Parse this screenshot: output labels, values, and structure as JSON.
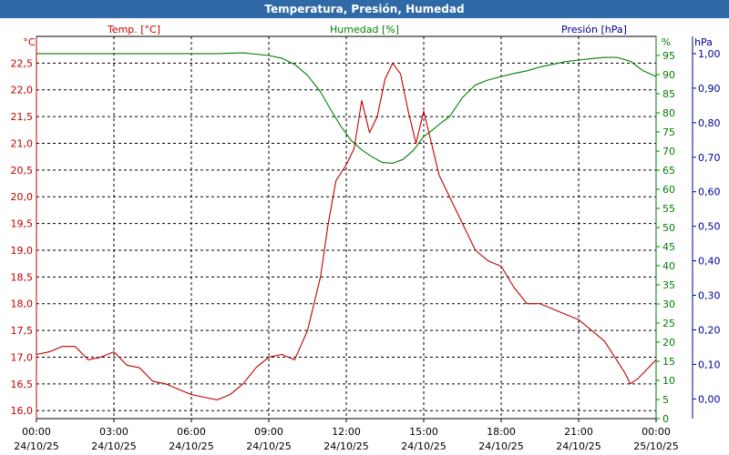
{
  "title": "Temperatura, Presión, Humedad",
  "colors": {
    "temp": "#c00000",
    "hum": "#008000",
    "pres": "#000090",
    "title_bg": "#2f6aa6",
    "grid": "#000000"
  },
  "chart_data": {
    "type": "line",
    "title": "Temperatura, Presión, Humedad",
    "grid": true,
    "x": {
      "ticks": [
        {
          "time": "00:00",
          "date": "24/10/25"
        },
        {
          "time": "03:00",
          "date": "24/10/25"
        },
        {
          "time": "06:00",
          "date": "24/10/25"
        },
        {
          "time": "09:00",
          "date": "24/10/25"
        },
        {
          "time": "12:00",
          "date": "24/10/25"
        },
        {
          "time": "15:00",
          "date": "24/10/25"
        },
        {
          "time": "18:00",
          "date": "24/10/25"
        },
        {
          "time": "21:00",
          "date": "24/10/25"
        },
        {
          "time": "00:00",
          "date": "25/10/25"
        }
      ],
      "range_hours": [
        0,
        24
      ]
    },
    "axes": {
      "temp": {
        "label": "Temp. [°C]",
        "unit": "°C",
        "range": [
          15.85,
          23.0
        ],
        "ticks": [
          "16,0",
          "16,5",
          "17,0",
          "17,5",
          "18,0",
          "18,5",
          "19,0",
          "19,5",
          "20,0",
          "20,5",
          "21,0",
          "21,5",
          "22,0",
          "22,5"
        ],
        "tick_values": [
          16.0,
          16.5,
          17.0,
          17.5,
          18.0,
          18.5,
          19.0,
          19.5,
          20.0,
          20.5,
          21.0,
          21.5,
          22.0,
          22.5
        ]
      },
      "hum": {
        "label": "Humedad [%]",
        "unit": "%",
        "range": [
          0,
          100
        ],
        "ticks": [
          "0",
          "5",
          "10",
          "15",
          "20",
          "25",
          "30",
          "35",
          "40",
          "45",
          "50",
          "55",
          "60",
          "65",
          "70",
          "75",
          "80",
          "85",
          "90",
          "95"
        ],
        "tick_values": [
          0,
          5,
          10,
          15,
          20,
          25,
          30,
          35,
          40,
          45,
          50,
          55,
          60,
          65,
          70,
          75,
          80,
          85,
          90,
          95
        ]
      },
      "pres": {
        "label": "Presión [hPa]",
        "unit": "hPa",
        "range": [
          -0.057,
          1.05
        ],
        "ticks": [
          "0,00",
          "0,10",
          "0,20",
          "0,30",
          "0,40",
          "0,50",
          "0,60",
          "0,70",
          "0,80",
          "0,90",
          "1,00"
        ],
        "tick_values": [
          0,
          0.1,
          0.2,
          0.3,
          0.4,
          0.5,
          0.6,
          0.7,
          0.8,
          0.9,
          1.0
        ]
      }
    },
    "series": [
      {
        "name": "Temp. [°C]",
        "axis": "temp",
        "points": [
          [
            0,
            17.05
          ],
          [
            0.5,
            17.1
          ],
          [
            1,
            17.2
          ],
          [
            1.5,
            17.2
          ],
          [
            2,
            16.95
          ],
          [
            2.5,
            17.0
          ],
          [
            3,
            17.1
          ],
          [
            3.5,
            16.85
          ],
          [
            4,
            16.8
          ],
          [
            4.5,
            16.55
          ],
          [
            5,
            16.5
          ],
          [
            5.5,
            16.4
          ],
          [
            6,
            16.3
          ],
          [
            6.5,
            16.25
          ],
          [
            7,
            16.2
          ],
          [
            7.5,
            16.3
          ],
          [
            8,
            16.5
          ],
          [
            8.5,
            16.8
          ],
          [
            9,
            17.0
          ],
          [
            9.5,
            17.05
          ],
          [
            10,
            16.95
          ],
          [
            10.5,
            17.5
          ],
          [
            11,
            18.5
          ],
          [
            11.3,
            19.5
          ],
          [
            11.6,
            20.3
          ],
          [
            12,
            20.6
          ],
          [
            12.3,
            20.9
          ],
          [
            12.6,
            21.8
          ],
          [
            12.9,
            21.2
          ],
          [
            13.2,
            21.5
          ],
          [
            13.5,
            22.2
          ],
          [
            13.8,
            22.5
          ],
          [
            14.1,
            22.3
          ],
          [
            14.4,
            21.6
          ],
          [
            14.7,
            21.0
          ],
          [
            15,
            21.6
          ],
          [
            15.3,
            21.0
          ],
          [
            15.6,
            20.4
          ],
          [
            16,
            20.0
          ],
          [
            16.5,
            19.5
          ],
          [
            17,
            19.0
          ],
          [
            17.5,
            18.8
          ],
          [
            18,
            18.7
          ],
          [
            18.5,
            18.3
          ],
          [
            19,
            18.0
          ],
          [
            19.5,
            18.0
          ],
          [
            20,
            17.9
          ],
          [
            20.5,
            17.8
          ],
          [
            21,
            17.7
          ],
          [
            21.5,
            17.5
          ],
          [
            22,
            17.3
          ],
          [
            22.4,
            17.0
          ],
          [
            22.8,
            16.7
          ],
          [
            23,
            16.5
          ],
          [
            23.3,
            16.6
          ],
          [
            23.7,
            16.8
          ],
          [
            24,
            16.95
          ]
        ]
      },
      {
        "name": "Humedad [%]",
        "axis": "hum",
        "points": [
          [
            0,
            95.5
          ],
          [
            1,
            95.5
          ],
          [
            2,
            95.5
          ],
          [
            3,
            95.5
          ],
          [
            4,
            95.5
          ],
          [
            5,
            95.5
          ],
          [
            6,
            95.5
          ],
          [
            7,
            95.5
          ],
          [
            8,
            95.7
          ],
          [
            9,
            95.0
          ],
          [
            9.5,
            94.3
          ],
          [
            10,
            92.7
          ],
          [
            10.5,
            89.8
          ],
          [
            11,
            85.5
          ],
          [
            11.4,
            80.8
          ],
          [
            11.8,
            76.4
          ],
          [
            12.2,
            72.7
          ],
          [
            12.6,
            70.3
          ],
          [
            13,
            68.5
          ],
          [
            13.4,
            67.0
          ],
          [
            13.8,
            66.8
          ],
          [
            14.2,
            67.8
          ],
          [
            14.6,
            70.2
          ],
          [
            15,
            73.8
          ],
          [
            15.3,
            75.3
          ],
          [
            15.7,
            77.5
          ],
          [
            16,
            79.0
          ],
          [
            16.5,
            84.0
          ],
          [
            17,
            87.3
          ],
          [
            17.5,
            88.6
          ],
          [
            18,
            89.5
          ],
          [
            18.5,
            90.3
          ],
          [
            19,
            91.0
          ],
          [
            19.5,
            92.0
          ],
          [
            20,
            92.7
          ],
          [
            20.5,
            93.4
          ],
          [
            21,
            93.8
          ],
          [
            21.5,
            94.2
          ],
          [
            22,
            94.5
          ],
          [
            22.5,
            94.5
          ],
          [
            23,
            93.5
          ],
          [
            23.5,
            91.0
          ],
          [
            24,
            89.5
          ]
        ]
      },
      {
        "name": "Presión [hPa]",
        "axis": "pres",
        "points": []
      }
    ]
  }
}
